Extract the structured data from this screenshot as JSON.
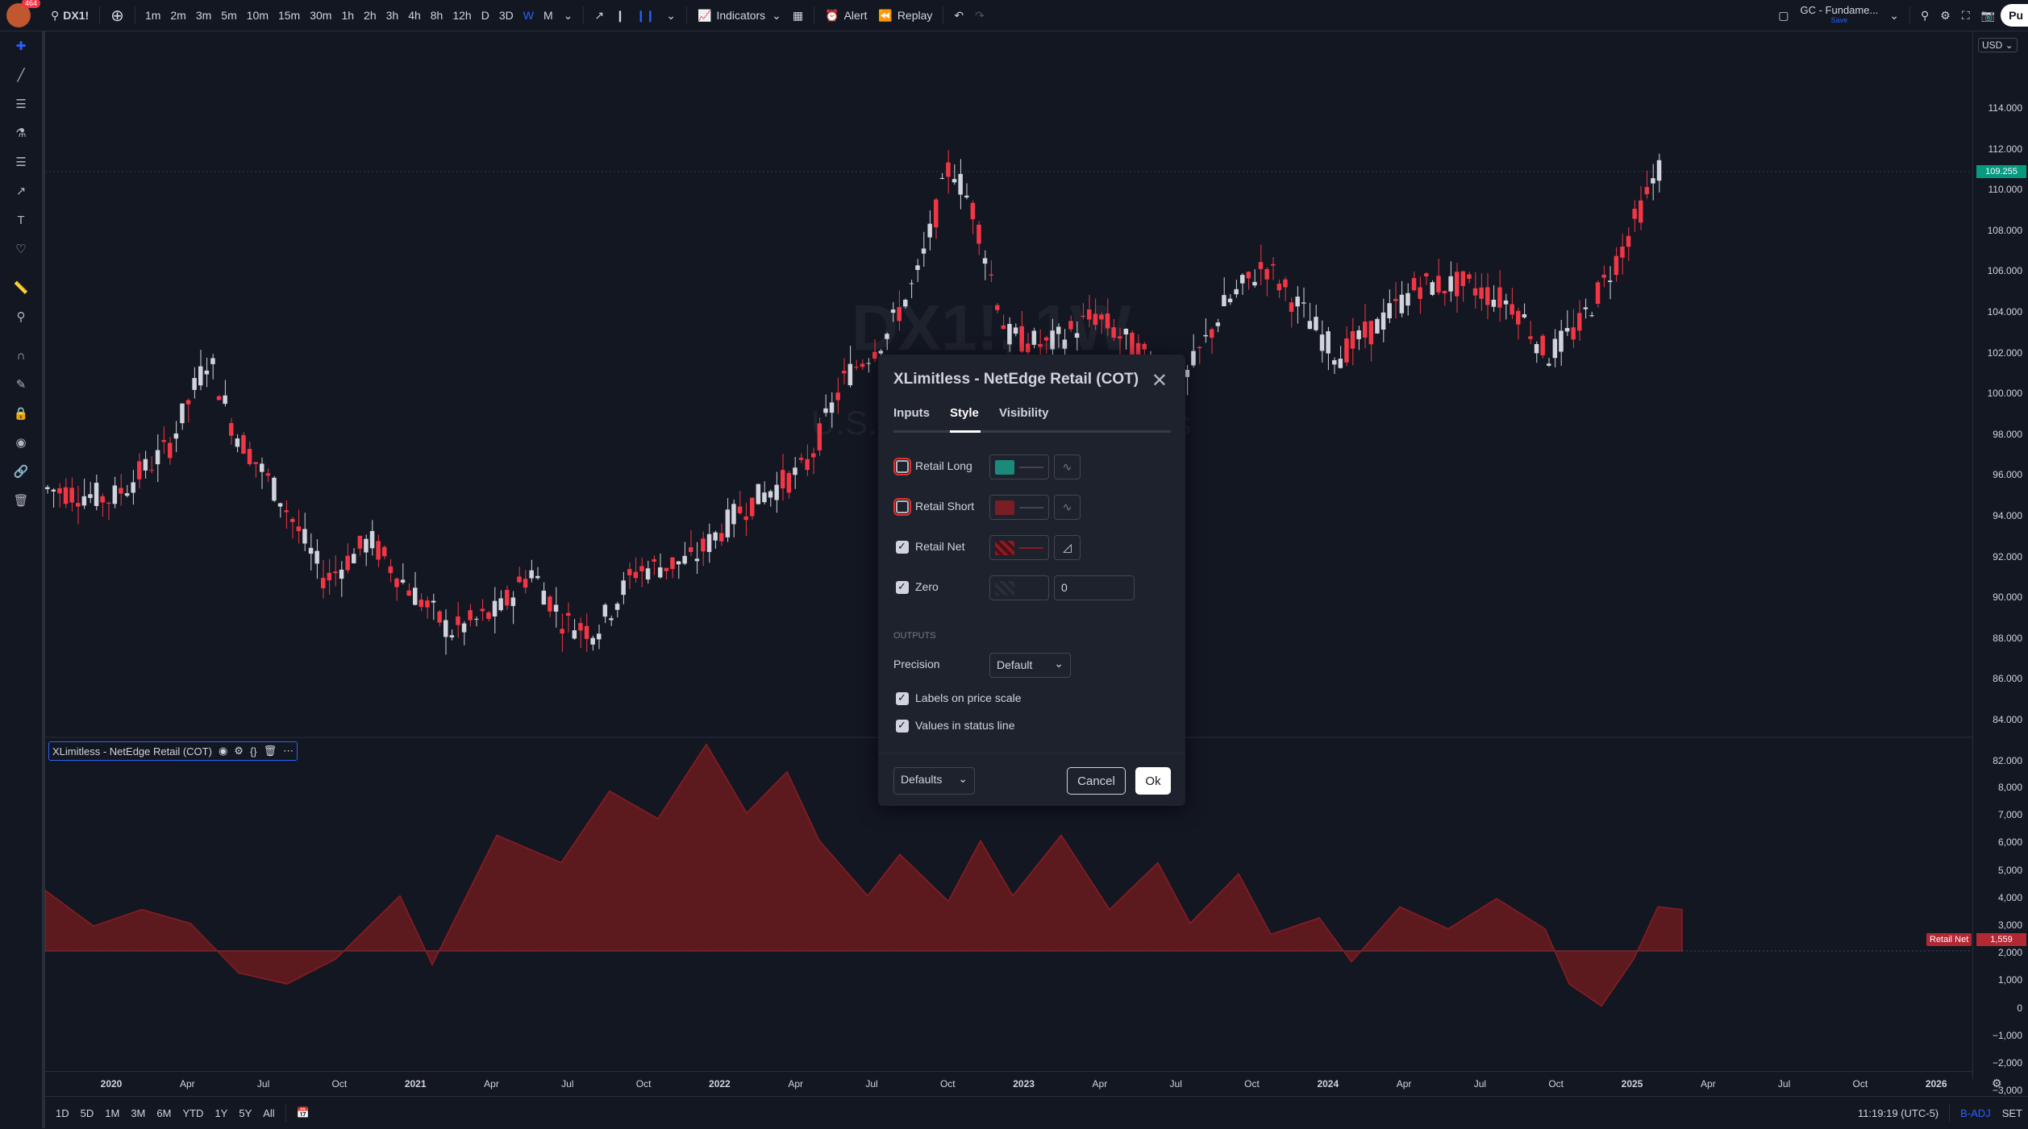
{
  "topbar": {
    "avatar_badge": "464",
    "symbol": "DX1!",
    "intervals": [
      "1m",
      "2m",
      "3m",
      "5m",
      "10m",
      "15m",
      "30m",
      "1h",
      "2h",
      "3h",
      "4h",
      "8h",
      "12h",
      "D",
      "3D",
      "W",
      "M"
    ],
    "active_interval": "W",
    "indicators_label": "Indicators",
    "alert_label": "Alert",
    "replay_label": "Replay",
    "layout_name": "GC - Fundame...",
    "layout_status": "Save",
    "publish_label": "Pu"
  },
  "watermark": {
    "symbol": "DX1!, 1W",
    "subtitle": "U.S. Dollar Index Futures"
  },
  "price_axis": {
    "currency": "USD",
    "labels": [
      "114.000",
      "112.000",
      "110.000",
      "108.000",
      "106.000",
      "104.000",
      "102.000",
      "100.000",
      "98.000",
      "96.000",
      "94.000",
      "92.000",
      "90.000",
      "88.000",
      "86.000",
      "84.000",
      "82.000"
    ],
    "current_price": "109.255",
    "indicator_labels": [
      "8,000",
      "7,000",
      "6,000",
      "5,000",
      "4,000",
      "3,000",
      "2,000",
      "1,000",
      "0",
      "−1,000",
      "−2,000",
      "−3,000"
    ],
    "retail_net_value": "1,559"
  },
  "time_axis": [
    "2020",
    "Apr",
    "Jul",
    "Oct",
    "2021",
    "Apr",
    "Jul",
    "Oct",
    "2022",
    "Apr",
    "Jul",
    "Oct",
    "2023",
    "Apr",
    "Jul",
    "Oct",
    "2024",
    "Apr",
    "Jul",
    "Oct",
    "2025",
    "Apr",
    "Jul",
    "Oct",
    "2026"
  ],
  "indicator_legend": {
    "name": "XLimitless - NetEdge Retail (COT)",
    "badge_label": "Retail Net"
  },
  "bottom_bar": {
    "ranges": [
      "1D",
      "5D",
      "1M",
      "3M",
      "6M",
      "YTD",
      "1Y",
      "5Y",
      "All"
    ],
    "clock": "11:19:19 (UTC-5)",
    "badj": "B-ADJ",
    "set": "SET"
  },
  "dialog": {
    "title": "XLimitless - NetEdge Retail (COT)",
    "tabs": [
      "Inputs",
      "Style",
      "Visibility"
    ],
    "active_tab": "Style",
    "rows": [
      {
        "label": "Retail Long",
        "checked": false,
        "color": "#1b8a7a"
      },
      {
        "label": "Retail Short",
        "checked": false,
        "color": "#7a1e26"
      },
      {
        "label": "Retail Net",
        "checked": true,
        "color": "#8b1c24"
      },
      {
        "label": "Zero",
        "checked": true,
        "value": "0"
      }
    ],
    "outputs_label": "OUTPUTS",
    "precision_label": "Precision",
    "precision_value": "Default",
    "labels_on_scale": "Labels on price scale",
    "values_in_status": "Values in status line",
    "defaults_label": "Defaults",
    "cancel_label": "Cancel",
    "ok_label": "Ok"
  },
  "colors": {
    "up": "#d1d4dc",
    "down": "#f23645",
    "accent": "#2962ff",
    "area": "#5c1a1f",
    "price_badge": "#089981"
  }
}
